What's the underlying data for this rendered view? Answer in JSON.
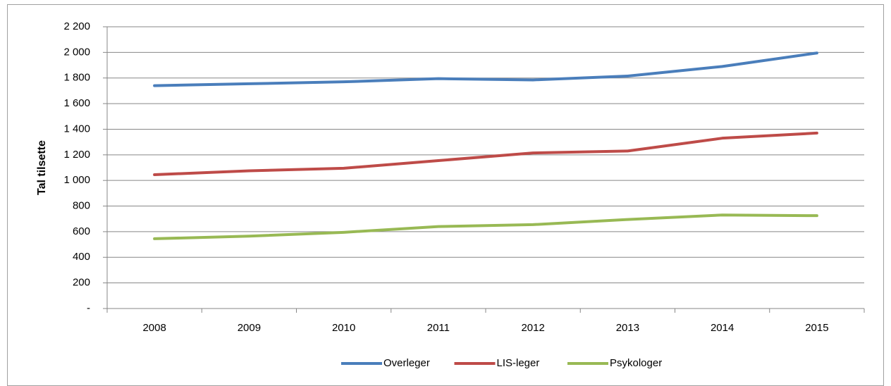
{
  "chart_data": {
    "type": "line",
    "y_label": "Tal tilsette",
    "categories": [
      "2008",
      "2009",
      "2010",
      "2011",
      "2012",
      "2013",
      "2014",
      "2015"
    ],
    "series": [
      {
        "name": "Overleger",
        "color": "#4a7ebb",
        "values": [
          1740,
          1755,
          1770,
          1795,
          1785,
          1815,
          1890,
          1995
        ]
      },
      {
        "name": "LIS-leger",
        "color": "#be4b48",
        "values": [
          1045,
          1075,
          1095,
          1155,
          1215,
          1230,
          1330,
          1370
        ]
      },
      {
        "name": "Psykologer",
        "color": "#98b954",
        "values": [
          545,
          565,
          595,
          640,
          655,
          695,
          730,
          725
        ]
      }
    ],
    "ylim": [
      0,
      2200
    ],
    "yticks": [
      {
        "value": 0,
        "label": "-"
      },
      200,
      400,
      600,
      800,
      {
        "value": 1000,
        "label": "1 000"
      },
      {
        "value": 1200,
        "label": "1 200"
      },
      {
        "value": 1400,
        "label": "1 400"
      },
      {
        "value": 1600,
        "label": "1 600"
      },
      {
        "value": 1800,
        "label": "1 800"
      },
      {
        "value": 2000,
        "label": "2 000"
      },
      {
        "value": 2200,
        "label": "2 200"
      }
    ],
    "grid": true,
    "legend": "bottom"
  }
}
